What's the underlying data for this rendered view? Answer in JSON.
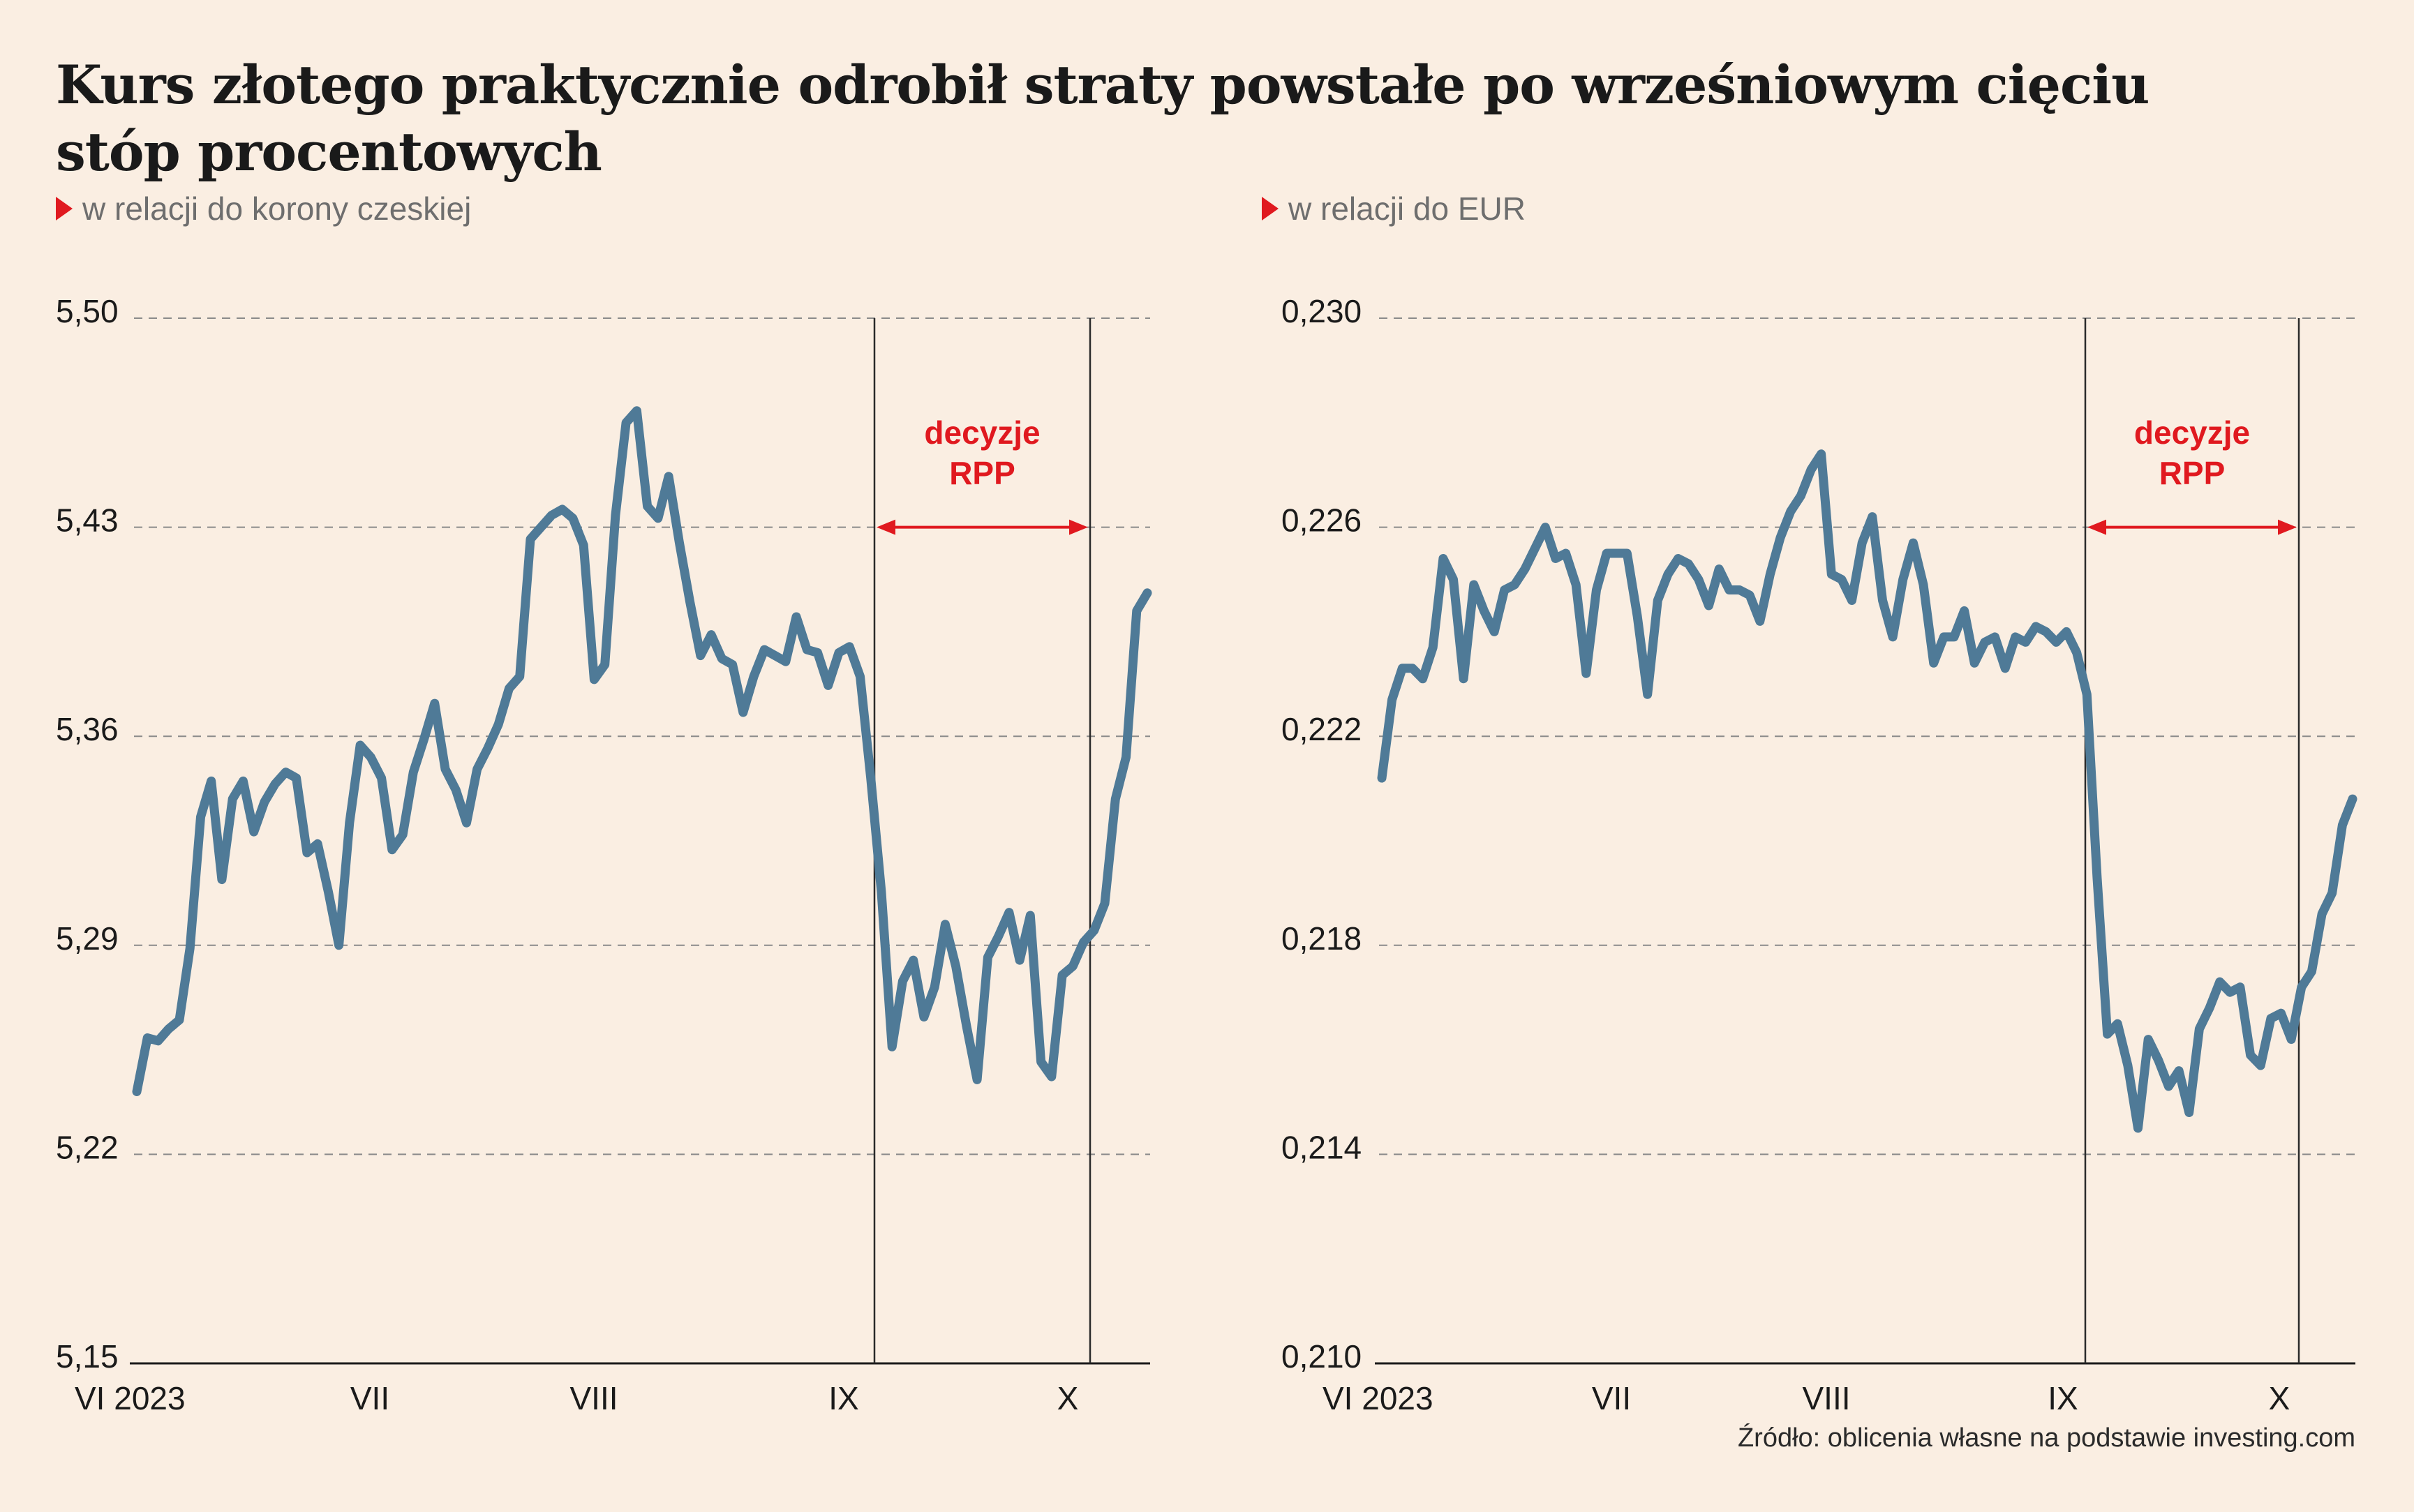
{
  "title": "Kurs złotego praktycznie odrobił straty powstałe po wrześniowym cięciu stóp procentowych",
  "source": "Źródło: oblicenia własne na podstawie investing.com",
  "colors": {
    "line": "#4f7a97",
    "annotation": "#e0191f",
    "grid": "#8a8a8a",
    "background": "#faeee2"
  },
  "chart_data": [
    {
      "type": "line",
      "subtitle": "w relacji do korony czeskiej",
      "x_tick_labels": [
        "VI 2023",
        "VII",
        "VIII",
        "IX",
        "X"
      ],
      "y_tick_labels": [
        "5,50",
        "5,43",
        "5,36",
        "5,29",
        "5,22",
        "5,15"
      ],
      "ylim": [
        5.15,
        5.5
      ],
      "grid": "horizontal dashed",
      "annotation": {
        "line1": "decyzje",
        "line2": "RPP",
        "from": "IX",
        "to": "X (first decision week)"
      },
      "series": [
        {
          "values": [
            5.241,
            5.259,
            5.258,
            5.262,
            5.265,
            5.289,
            5.333,
            5.345,
            5.312,
            5.339,
            5.345,
            5.328,
            5.338,
            5.344,
            5.348,
            5.346,
            5.321,
            5.324,
            5.308,
            5.29,
            5.331,
            5.357,
            5.353,
            5.346,
            5.322,
            5.327,
            5.348,
            5.359,
            5.371,
            5.349,
            5.342,
            5.331,
            5.349,
            5.356,
            5.364,
            5.376,
            5.38,
            5.426,
            5.43,
            5.434,
            5.436,
            5.433,
            5.424,
            5.379,
            5.384,
            5.434,
            5.465,
            5.469,
            5.437,
            5.433,
            5.447,
            5.425,
            5.405,
            5.387,
            5.394,
            5.386,
            5.384,
            5.368,
            5.38,
            5.389,
            5.387,
            5.385,
            5.4,
            5.389,
            5.388,
            5.377,
            5.388,
            5.39,
            5.38,
            5.346,
            5.308,
            5.256,
            5.278,
            5.285,
            5.266,
            5.276,
            5.297,
            5.283,
            5.263,
            5.245,
            5.286,
            5.293,
            5.301,
            5.285,
            5.3,
            5.251,
            5.246,
            5.28,
            5.283,
            5.291,
            5.295,
            5.304,
            5.339,
            5.353,
            5.402,
            5.408
          ]
        }
      ]
    },
    {
      "type": "line",
      "subtitle": "w relacji do EUR",
      "x_tick_labels": [
        "VI 2023",
        "VII",
        "VIII",
        "IX",
        "X"
      ],
      "y_tick_labels": [
        "0,230",
        "0,226",
        "0,222",
        "0,218",
        "0,214",
        "0,210"
      ],
      "ylim": [
        0.21,
        0.23
      ],
      "grid": "horizontal dashed",
      "annotation": {
        "line1": "decyzje",
        "line2": "RPP",
        "from": "IX",
        "to": "X (first decision week)"
      },
      "series": [
        {
          "values": [
            0.2212,
            0.2227,
            0.2233,
            0.2233,
            0.2231,
            0.2237,
            0.2254,
            0.225,
            0.2231,
            0.2249,
            0.2244,
            0.224,
            0.2248,
            0.2249,
            0.2252,
            0.2256,
            0.226,
            0.2254,
            0.2255,
            0.2249,
            0.2232,
            0.2248,
            0.2255,
            0.2255,
            0.2255,
            0.2243,
            0.2228,
            0.2246,
            0.2251,
            0.2254,
            0.2253,
            0.225,
            0.2245,
            0.2252,
            0.2248,
            0.2248,
            0.2247,
            0.2242,
            0.2251,
            0.2258,
            0.2263,
            0.2266,
            0.2271,
            0.2274,
            0.2251,
            0.225,
            0.2246,
            0.2257,
            0.2262,
            0.2246,
            0.2239,
            0.225,
            0.2257,
            0.2249,
            0.2234,
            0.2239,
            0.2239,
            0.2244,
            0.2234,
            0.2238,
            0.2239,
            0.2233,
            0.2239,
            0.2238,
            0.2241,
            0.224,
            0.2238,
            0.224,
            0.2236,
            0.2228,
            0.2193,
            0.2163,
            0.2165,
            0.2157,
            0.2145,
            0.2162,
            0.2158,
            0.2153,
            0.2156,
            0.2148,
            0.2164,
            0.2168,
            0.2173,
            0.2171,
            0.2172,
            0.2159,
            0.2157,
            0.2166,
            0.2167,
            0.2162,
            0.2172,
            0.2175,
            0.2186,
            0.219,
            0.2203,
            0.2208
          ]
        }
      ]
    }
  ]
}
